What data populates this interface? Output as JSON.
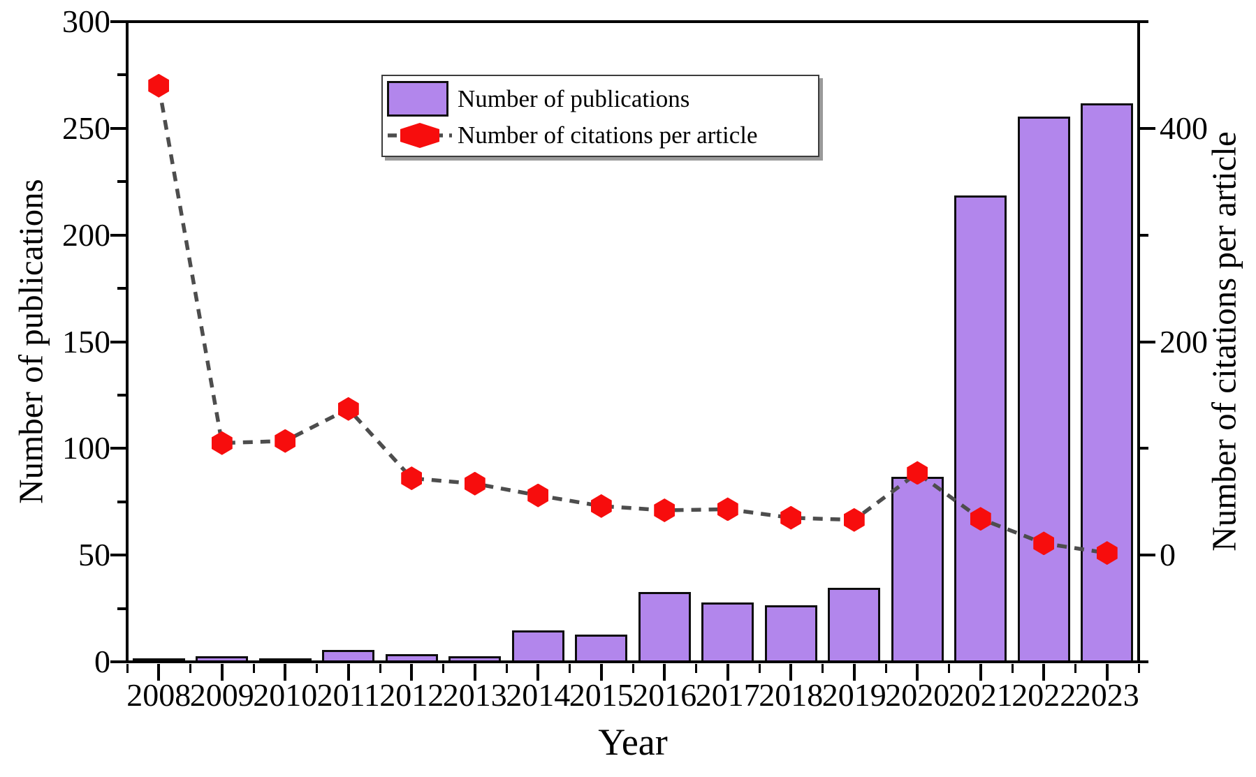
{
  "figure": {
    "background": "#ffffff",
    "frame_color": "#000000"
  },
  "chart_data": {
    "type": "bar+line (dual y-axis combo)",
    "categories": [
      "2008",
      "2009",
      "2010",
      "2011",
      "2012",
      "2013",
      "2014",
      "2015",
      "2016",
      "2017",
      "2018",
      "2019",
      "2020",
      "2021",
      "2022",
      "2023"
    ],
    "series": [
      {
        "name": "Number of publications",
        "type": "bar",
        "y_axis": "left",
        "fill_color": "#b286ec",
        "edge_color": "#0d0d0d",
        "values": [
          1,
          2,
          1,
          5,
          3,
          2,
          14,
          12,
          32,
          27,
          26,
          34,
          86,
          218,
          255,
          261
        ]
      },
      {
        "name": "Number of citations per article",
        "type": "line",
        "y_axis": "right",
        "line_style": "dashed",
        "line_color": "#4d4d4d",
        "marker_shape": "hexagon",
        "marker_color": "#f70d0d",
        "values": [
          440,
          105,
          107,
          137,
          72,
          67,
          56,
          46,
          42,
          43,
          35,
          33,
          77,
          34,
          11,
          2
        ]
      }
    ],
    "xlabel": "Year",
    "left_axis": {
      "label": "Number of publications",
      "min": 0,
      "max": 300,
      "major_ticks": [
        0,
        50,
        100,
        150,
        200,
        250,
        300
      ],
      "minor_step": 25
    },
    "right_axis": {
      "label": "Number of citations per article",
      "min": -100,
      "max": 500,
      "major_ticks": [
        0,
        200,
        400
      ],
      "minor_step": 100
    },
    "legend": {
      "position": "top-center-inside",
      "entries": [
        "Number of publications",
        "Number of citations per article"
      ]
    },
    "grid": false
  }
}
